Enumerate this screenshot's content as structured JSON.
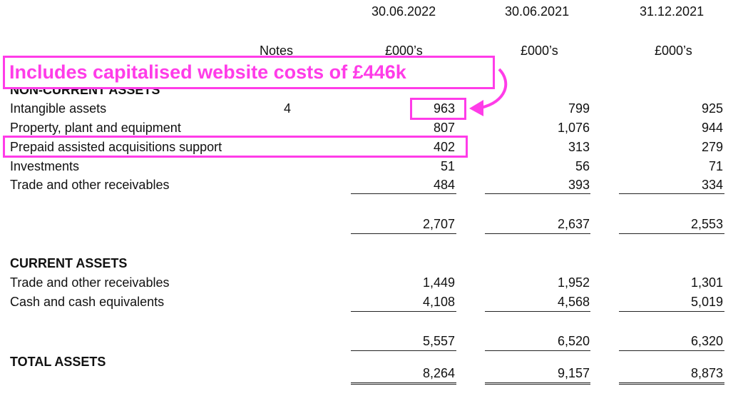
{
  "header": {
    "dates": [
      "30.06.2022",
      "30.06.2021",
      "31.12.2021"
    ],
    "notes_label": "Notes",
    "units": [
      "£000’s",
      "£000’s",
      "£000’s"
    ]
  },
  "non_current": {
    "heading": "NON-CURRENT ASSETS",
    "rows": [
      {
        "label": "Intangible assets",
        "note": "4",
        "values": [
          "963",
          "799",
          "925"
        ]
      },
      {
        "label": "Property, plant and equipment",
        "note": "",
        "values": [
          "807",
          "1,076",
          "944"
        ]
      },
      {
        "label": "Prepaid assisted acquisitions support",
        "note": "",
        "values": [
          "402",
          "313",
          "279"
        ]
      },
      {
        "label": "Investments",
        "note": "",
        "values": [
          "51",
          "56",
          "71"
        ]
      },
      {
        "label": "Trade and other receivables",
        "note": "",
        "values": [
          "484",
          "393",
          "334"
        ]
      }
    ],
    "totals": [
      "2,707",
      "2,637",
      "2,553"
    ]
  },
  "current": {
    "heading": "CURRENT ASSETS",
    "rows": [
      {
        "label": "Trade and other receivables",
        "values": [
          "1,449",
          "1,952",
          "1,301"
        ]
      },
      {
        "label": "Cash and cash equivalents",
        "values": [
          "4,108",
          "4,568",
          "5,019"
        ]
      }
    ],
    "totals": [
      "5,557",
      "6,520",
      "6,320"
    ]
  },
  "total_assets": {
    "label": "TOTAL ASSETS",
    "values": [
      "8,264",
      "9,157",
      "8,873"
    ]
  },
  "annotation": {
    "text": "Includes capitalised website costs of £446k",
    "color": "#ff3ce8"
  }
}
